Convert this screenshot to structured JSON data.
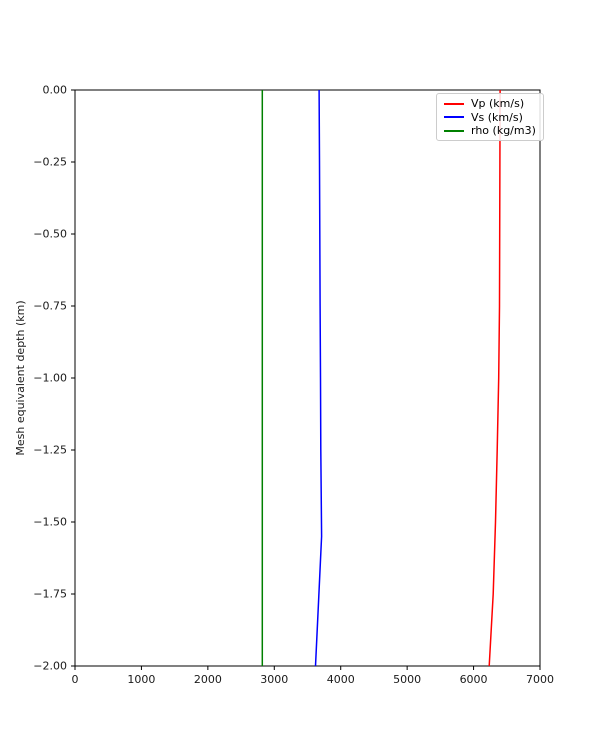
{
  "figure": {
    "background": "#ffffff"
  },
  "chart_data": {
    "type": "line",
    "title": "",
    "xlabel": "",
    "ylabel": "Mesh equivalent depth (km)",
    "xlim": [
      0,
      7000
    ],
    "ylim": [
      -2.0,
      0.0
    ],
    "grid": false,
    "legend_position": "upper right",
    "x_ticks": {
      "values": [
        0,
        1000,
        2000,
        3000,
        4000,
        5000,
        6000,
        7000
      ],
      "labels": [
        "0",
        "1000",
        "2000",
        "3000",
        "4000",
        "5000",
        "6000",
        "7000"
      ]
    },
    "y_ticks": {
      "values": [
        0.0,
        -0.25,
        -0.5,
        -0.75,
        -1.0,
        -1.25,
        -1.5,
        -1.75,
        -2.0
      ],
      "labels": [
        "0.00",
        "−0.25",
        "−0.50",
        "−0.75",
        "−1.00",
        "−1.25",
        "−1.50",
        "−1.75",
        "−2.00"
      ]
    },
    "series": [
      {
        "id": "vp",
        "name": "Vp (km/s)",
        "color": "#ff0000",
        "points": [
          [
            6400,
            0.0
          ],
          [
            6397,
            -0.25
          ],
          [
            6394,
            -0.5
          ],
          [
            6390,
            -0.75
          ],
          [
            6378,
            -1.0
          ],
          [
            6355,
            -1.25
          ],
          [
            6330,
            -1.5
          ],
          [
            6295,
            -1.75
          ],
          [
            6235,
            -2.0
          ]
        ]
      },
      {
        "id": "vs",
        "name": "Vs (km/s)",
        "color": "#0000ff",
        "points": [
          [
            3675,
            0.0
          ],
          [
            3680,
            -0.25
          ],
          [
            3685,
            -0.5
          ],
          [
            3690,
            -0.75
          ],
          [
            3695,
            -1.0
          ],
          [
            3700,
            -1.25
          ],
          [
            3712,
            -1.55
          ],
          [
            3665,
            -1.78
          ],
          [
            3620,
            -2.0
          ]
        ]
      },
      {
        "id": "rho",
        "name": "rho (kg/m3)",
        "color": "#008000",
        "points": [
          [
            2820,
            0.0
          ],
          [
            2820,
            -2.0
          ]
        ]
      }
    ]
  }
}
